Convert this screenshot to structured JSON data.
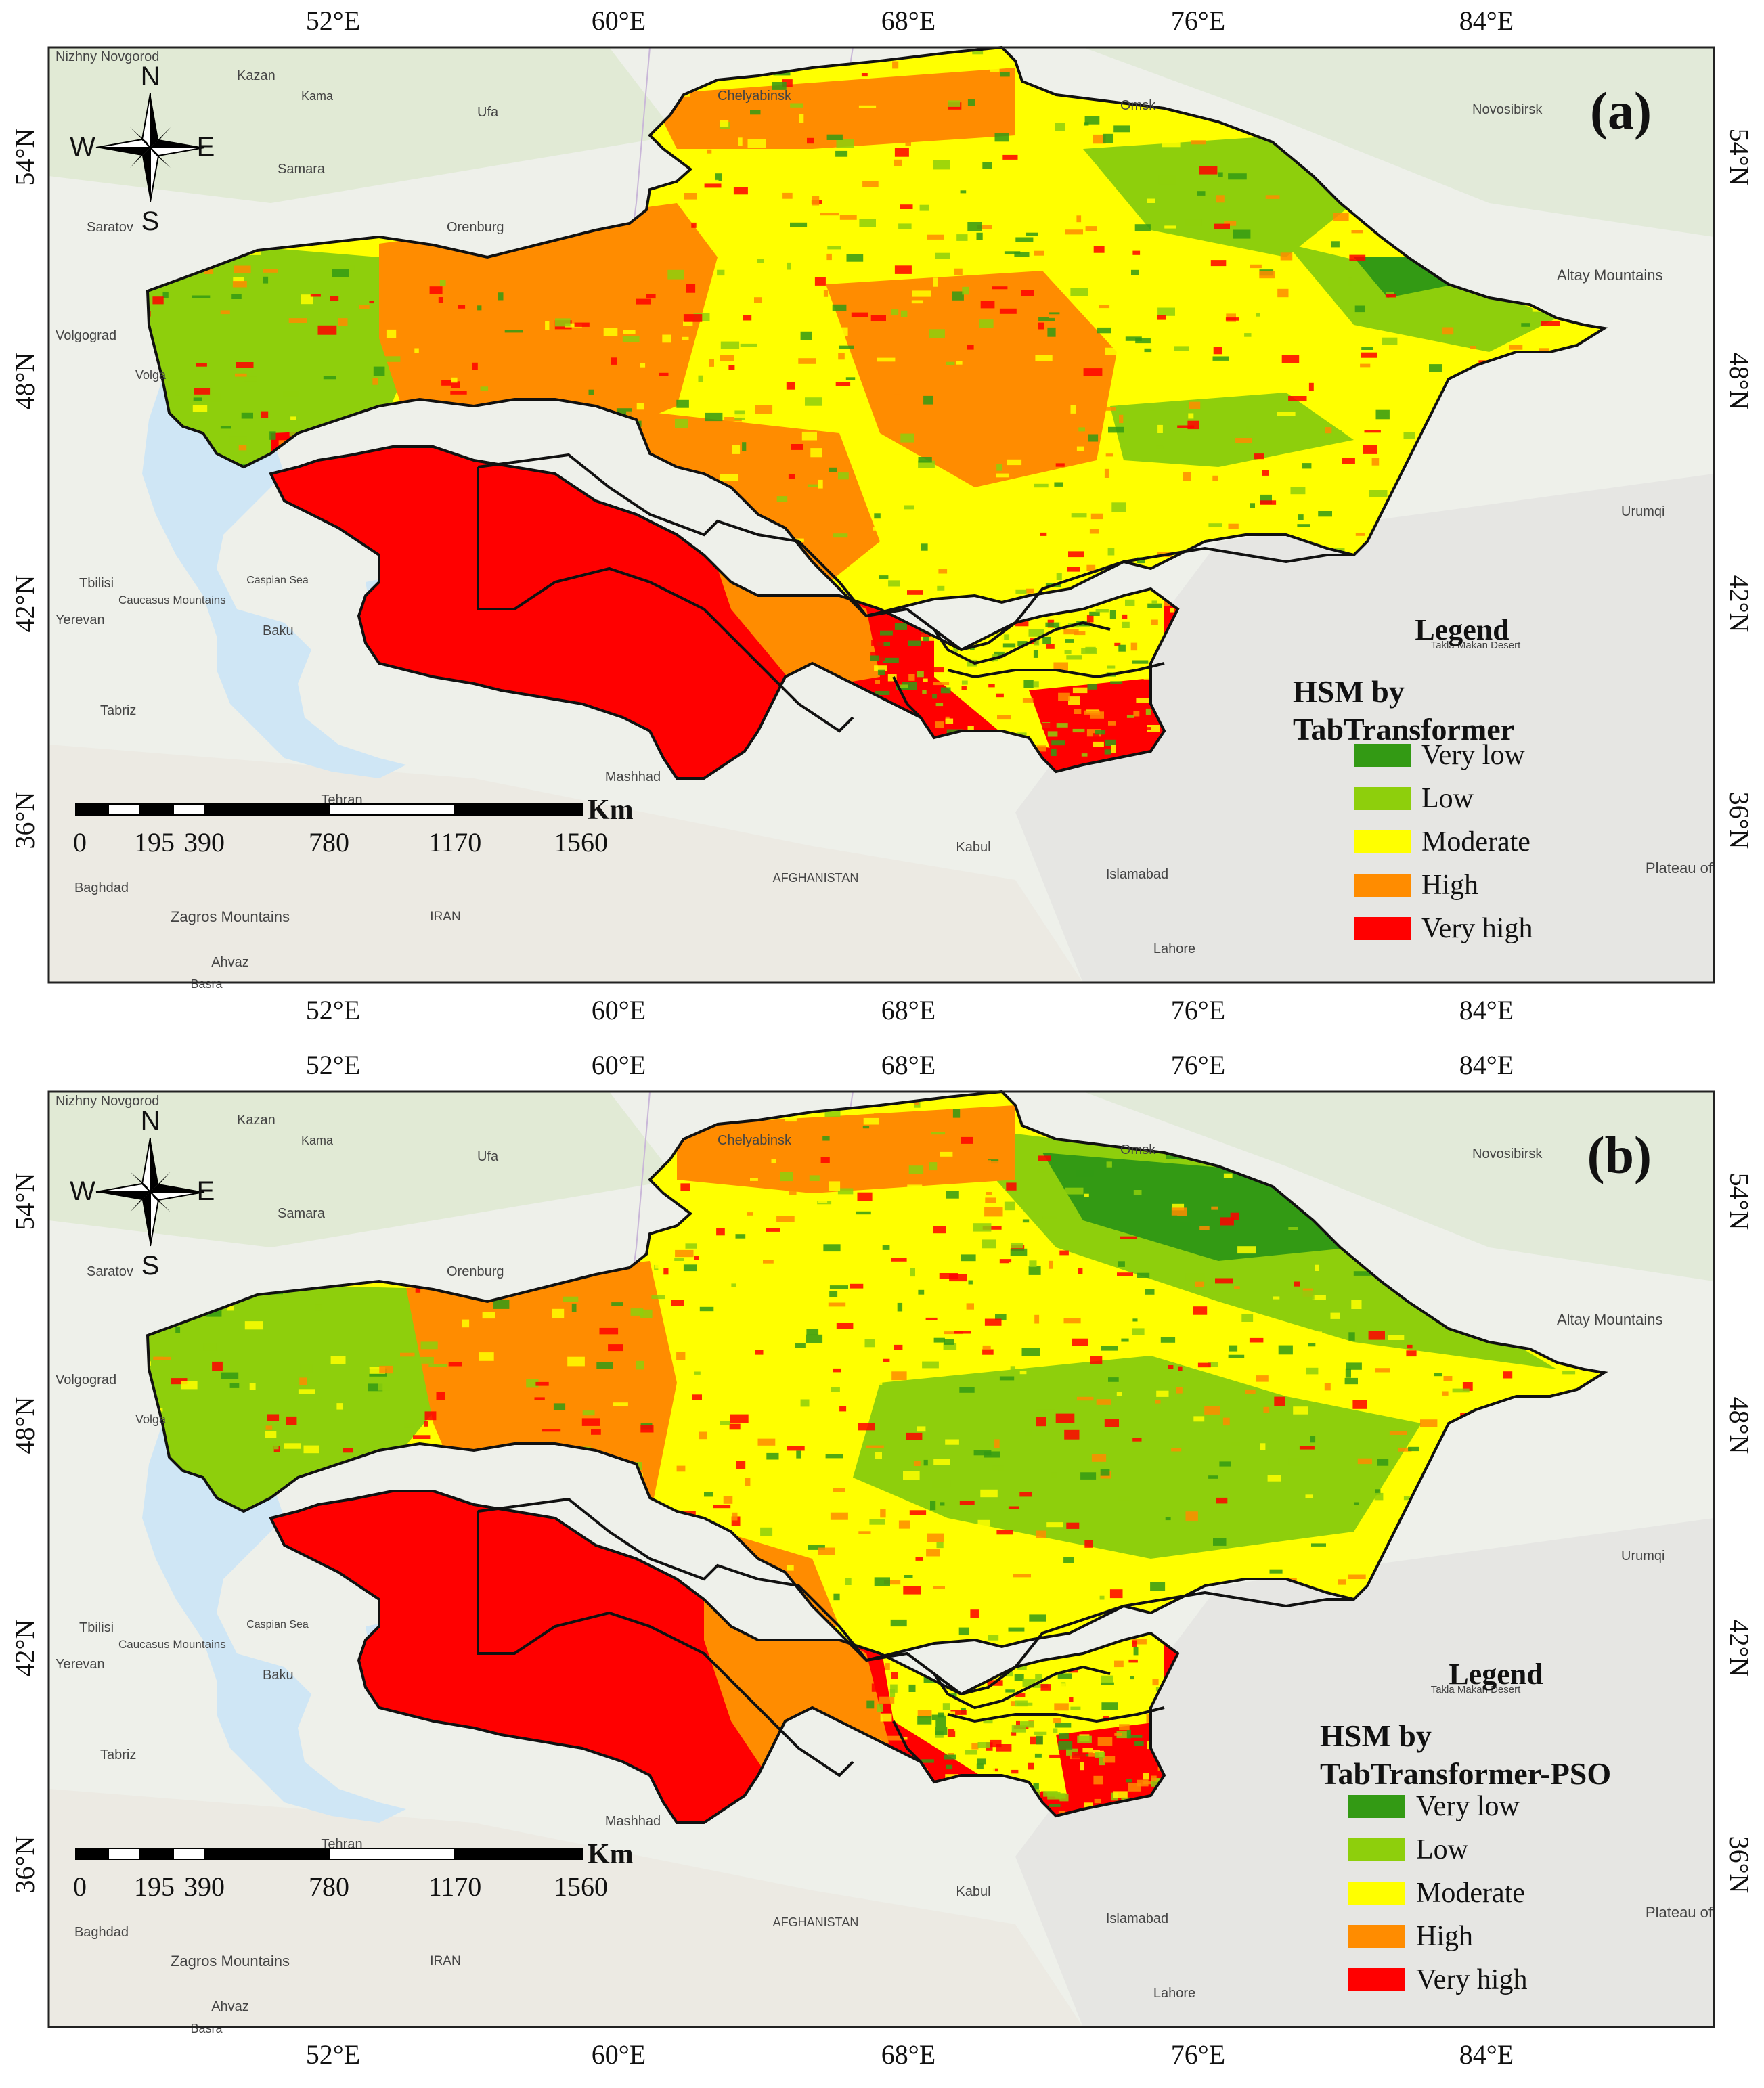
{
  "panels": [
    {
      "id": "a",
      "label": "(a)",
      "legend_title": "Legend",
      "legend_heading": [
        "HSM by",
        "TabTransformer"
      ],
      "classes": [
        {
          "label": "Very low",
          "color": "#339a14"
        },
        {
          "label": "Low",
          "color": "#8ecf0c"
        },
        {
          "label": "Moderate",
          "color": "#ffff00"
        },
        {
          "label": "High",
          "color": "#ff8c00"
        },
        {
          "label": "Very high",
          "color": "#ff0000"
        }
      ]
    },
    {
      "id": "b",
      "label": "(b)",
      "legend_title": "Legend",
      "legend_heading": [
        "HSM by",
        "TabTransformer-PSO"
      ],
      "classes": [
        {
          "label": "Very low",
          "color": "#339a14"
        },
        {
          "label": "Low",
          "color": "#8ecf0c"
        },
        {
          "label": "Moderate",
          "color": "#ffff00"
        },
        {
          "label": "High",
          "color": "#ff8c00"
        },
        {
          "label": "Very high",
          "color": "#ff0000"
        }
      ]
    }
  ],
  "lon_ticks": [
    "52°E",
    "60°E",
    "68°E",
    "76°E",
    "84°E"
  ],
  "lat_ticks": [
    "54°N",
    "48°N",
    "42°N",
    "36°N"
  ],
  "compass": {
    "n": "N",
    "s": "S",
    "e": "E",
    "w": "W"
  },
  "scale_bar": {
    "unit": "Km",
    "ticks": [
      "0",
      "195",
      "390",
      "780",
      "1170",
      "1560"
    ]
  },
  "place_labels": [
    "Nizhny Novgorod",
    "Kazan",
    "Kama",
    "Ufa",
    "Chelyabinsk",
    "Omsk",
    "Novosibirsk",
    "Samara",
    "Orenburg",
    "Saratov",
    "Volgograd",
    "Volga",
    "Altay Mountains",
    "Urumqi",
    "Caspian Sea",
    "Tbilisi",
    "Caucasus Mountains",
    "Yerevan",
    "Baku",
    "Tabriz",
    "Takla Makan Desert",
    "Mashhad",
    "Tehran",
    "Kabul",
    "Islamabad",
    "Lahore",
    "AFGHANISTAN",
    "IRAN",
    "Zagros Mountains",
    "Baghdad",
    "Ahvaz",
    "Basra",
    "Plateau of"
  ]
}
